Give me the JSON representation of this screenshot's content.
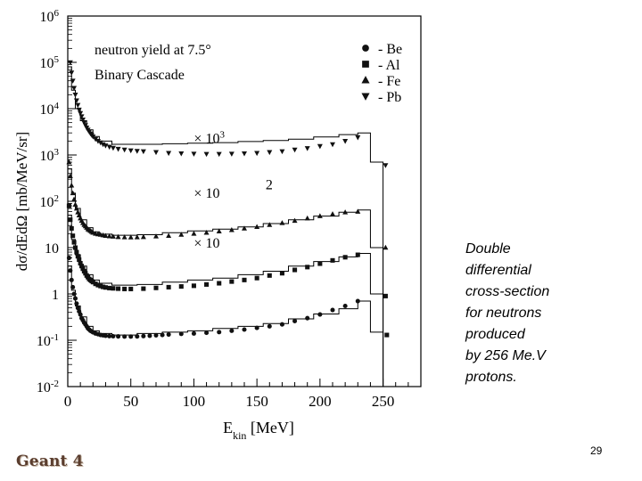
{
  "chart_data": {
    "type": "scatter",
    "title": "neutron yield at 7.5°",
    "subtitle": "Binary Cascade",
    "xlabel_main": "E",
    "xlabel_sub": "kin",
    "xlabel_unit": " [MeV]",
    "ylabel": "dσ/dEdΩ [mb/MeV/sr]",
    "xlim": [
      0,
      280
    ],
    "ylim": [
      0.01,
      1000000
    ],
    "yscale": "log",
    "xticks": [
      0,
      50,
      100,
      150,
      200,
      250
    ],
    "xtick_labels": [
      "0",
      "50",
      "100",
      "150",
      "200",
      "250"
    ],
    "yticks": [
      {
        "value": 1000000,
        "base": "10",
        "exp": "6"
      },
      {
        "value": 100000,
        "base": "10",
        "exp": "5"
      },
      {
        "value": 10000,
        "base": "10",
        "exp": "4"
      },
      {
        "value": 1000,
        "base": "10",
        "exp": "3"
      },
      {
        "value": 100,
        "base": "10",
        "exp": "2"
      },
      {
        "value": 10,
        "base": "10",
        "exp": ""
      },
      {
        "value": 1,
        "base": "1",
        "exp": ""
      },
      {
        "value": 0.1,
        "base": "10",
        "exp": "-1"
      },
      {
        "value": 0.01,
        "base": "10",
        "exp": "-2"
      }
    ],
    "scale_labels": [
      {
        "text": "× 10",
        "exp": "3",
        "x": 100,
        "y": 1800
      },
      {
        "text": "× 10",
        "exp": "",
        "x": 100,
        "y": 120
      },
      {
        "text": "2",
        "exp": "",
        "x": 130,
        "y": 180
      },
      {
        "text": "× 10",
        "exp": "",
        "x": 100,
        "y": 10
      }
    ],
    "legend": [
      {
        "marker": "circle",
        "label": "- Be"
      },
      {
        "marker": "square",
        "label": "- Al"
      },
      {
        "marker": "triangle-up",
        "label": "- Fe"
      },
      {
        "marker": "triangle-down",
        "label": "- Pb"
      }
    ],
    "series": [
      {
        "name": "Be",
        "marker": "circle",
        "points": [
          [
            1,
            6
          ],
          [
            2,
            3.2
          ],
          [
            3,
            2
          ],
          [
            4,
            1.4
          ],
          [
            5,
            1
          ],
          [
            6,
            0.8
          ],
          [
            7,
            0.62
          ],
          [
            8,
            0.5
          ],
          [
            9,
            0.42
          ],
          [
            10,
            0.36
          ],
          [
            11,
            0.3
          ],
          [
            12,
            0.27
          ],
          [
            13,
            0.24
          ],
          [
            14,
            0.22
          ],
          [
            15,
            0.2
          ],
          [
            16,
            0.18
          ],
          [
            17,
            0.17
          ],
          [
            18,
            0.16
          ],
          [
            19,
            0.155
          ],
          [
            20,
            0.148
          ],
          [
            22,
            0.14
          ],
          [
            24,
            0.135
          ],
          [
            26,
            0.13
          ],
          [
            28,
            0.128
          ],
          [
            30,
            0.125
          ],
          [
            33,
            0.123
          ],
          [
            36,
            0.122
          ],
          [
            40,
            0.121
          ],
          [
            45,
            0.12
          ],
          [
            50,
            0.12
          ],
          [
            55,
            0.121
          ],
          [
            60,
            0.123
          ],
          [
            65,
            0.125
          ],
          [
            70,
            0.128
          ],
          [
            75,
            0.13
          ],
          [
            80,
            0.133
          ],
          [
            90,
            0.137
          ],
          [
            100,
            0.14
          ],
          [
            110,
            0.145
          ],
          [
            120,
            0.15
          ],
          [
            130,
            0.16
          ],
          [
            140,
            0.17
          ],
          [
            150,
            0.185
          ],
          [
            160,
            0.2
          ],
          [
            170,
            0.22
          ],
          [
            180,
            0.26
          ],
          [
            190,
            0.3
          ],
          [
            200,
            0.36
          ],
          [
            210,
            0.45
          ],
          [
            220,
            0.55
          ],
          [
            230,
            0.7
          ]
        ],
        "hist": [
          [
            0,
            4
          ],
          [
            3,
            1.2
          ],
          [
            6,
            0.55
          ],
          [
            10,
            0.32
          ],
          [
            15,
            0.2
          ],
          [
            20,
            0.16
          ],
          [
            25,
            0.14
          ],
          [
            35,
            0.13
          ],
          [
            55,
            0.14
          ],
          [
            75,
            0.15
          ],
          [
            95,
            0.16
          ],
          [
            115,
            0.18
          ],
          [
            135,
            0.2
          ],
          [
            155,
            0.23
          ],
          [
            175,
            0.29
          ],
          [
            195,
            0.37
          ],
          [
            215,
            0.48
          ],
          [
            230,
            0.7
          ],
          [
            240,
            0.15
          ],
          [
            250,
            0.01
          ]
        ]
      },
      {
        "name": "Al",
        "marker": "square",
        "points": [
          [
            1,
            80
          ],
          [
            2,
            40
          ],
          [
            3,
            26
          ],
          [
            4,
            18
          ],
          [
            5,
            13
          ],
          [
            6,
            10
          ],
          [
            7,
            8
          ],
          [
            8,
            6.5
          ],
          [
            9,
            5.5
          ],
          [
            10,
            4.6
          ],
          [
            11,
            4
          ],
          [
            12,
            3.5
          ],
          [
            13,
            3.1
          ],
          [
            14,
            2.8
          ],
          [
            15,
            2.5
          ],
          [
            16,
            2.3
          ],
          [
            17,
            2.1
          ],
          [
            18,
            2
          ],
          [
            19,
            1.9
          ],
          [
            20,
            1.8
          ],
          [
            22,
            1.65
          ],
          [
            24,
            1.55
          ],
          [
            26,
            1.48
          ],
          [
            28,
            1.42
          ],
          [
            30,
            1.38
          ],
          [
            33,
            1.34
          ],
          [
            36,
            1.32
          ],
          [
            40,
            1.3
          ],
          [
            45,
            1.28
          ],
          [
            50,
            1.28
          ],
          [
            60,
            1.3
          ],
          [
            70,
            1.35
          ],
          [
            80,
            1.4
          ],
          [
            90,
            1.45
          ],
          [
            100,
            1.5
          ],
          [
            110,
            1.6
          ],
          [
            120,
            1.7
          ],
          [
            130,
            1.85
          ],
          [
            140,
            2
          ],
          [
            150,
            2.2
          ],
          [
            160,
            2.5
          ],
          [
            170,
            2.8
          ],
          [
            180,
            3.3
          ],
          [
            190,
            3.8
          ],
          [
            200,
            4.5
          ],
          [
            210,
            5.3
          ],
          [
            220,
            6.2
          ],
          [
            230,
            7
          ],
          [
            252,
            0.9
          ],
          [
            253,
            0.13
          ]
        ],
        "hist": [
          [
            0,
            50
          ],
          [
            3,
            15
          ],
          [
            6,
            7
          ],
          [
            10,
            4
          ],
          [
            15,
            2.6
          ],
          [
            20,
            2
          ],
          [
            25,
            1.7
          ],
          [
            35,
            1.55
          ],
          [
            55,
            1.6
          ],
          [
            75,
            1.8
          ],
          [
            95,
            2
          ],
          [
            115,
            2.2
          ],
          [
            135,
            2.6
          ],
          [
            155,
            3.1
          ],
          [
            175,
            4
          ],
          [
            195,
            5
          ],
          [
            215,
            6.3
          ],
          [
            230,
            7.5
          ],
          [
            240,
            1
          ],
          [
            250,
            0.01
          ]
        ]
      },
      {
        "name": "Fe",
        "marker": "triangle-up",
        "points": [
          [
            1,
            700
          ],
          [
            2,
            350
          ],
          [
            3,
            220
          ],
          [
            4,
            150
          ],
          [
            5,
            110
          ],
          [
            6,
            85
          ],
          [
            7,
            70
          ],
          [
            8,
            58
          ],
          [
            9,
            50
          ],
          [
            10,
            43
          ],
          [
            11,
            38
          ],
          [
            12,
            34
          ],
          [
            13,
            31
          ],
          [
            14,
            29
          ],
          [
            15,
            27
          ],
          [
            16,
            25
          ],
          [
            17,
            24
          ],
          [
            18,
            23
          ],
          [
            19,
            22
          ],
          [
            20,
            21
          ],
          [
            22,
            20
          ],
          [
            24,
            19.5
          ],
          [
            26,
            19
          ],
          [
            28,
            18.5
          ],
          [
            30,
            18
          ],
          [
            33,
            17.6
          ],
          [
            36,
            17.3
          ],
          [
            40,
            17
          ],
          [
            45,
            16.8
          ],
          [
            50,
            16.7
          ],
          [
            55,
            16.8
          ],
          [
            60,
            17
          ],
          [
            70,
            17.5
          ],
          [
            80,
            18
          ],
          [
            90,
            19
          ],
          [
            100,
            20
          ],
          [
            110,
            21
          ],
          [
            120,
            22.5
          ],
          [
            130,
            24
          ],
          [
            140,
            26
          ],
          [
            150,
            28
          ],
          [
            160,
            31
          ],
          [
            170,
            34
          ],
          [
            180,
            38
          ],
          [
            190,
            43
          ],
          [
            200,
            48
          ],
          [
            210,
            53
          ],
          [
            220,
            58
          ],
          [
            230,
            60
          ],
          [
            252,
            10
          ]
        ],
        "hist": [
          [
            0,
            500
          ],
          [
            3,
            150
          ],
          [
            6,
            70
          ],
          [
            10,
            40
          ],
          [
            15,
            27
          ],
          [
            20,
            22
          ],
          [
            25,
            19.5
          ],
          [
            35,
            18.5
          ],
          [
            55,
            19
          ],
          [
            75,
            21
          ],
          [
            95,
            23
          ],
          [
            115,
            25
          ],
          [
            135,
            28
          ],
          [
            155,
            33
          ],
          [
            175,
            40
          ],
          [
            195,
            48
          ],
          [
            215,
            58
          ],
          [
            230,
            65
          ],
          [
            240,
            10
          ],
          [
            250,
            0.01
          ]
        ]
      },
      {
        "name": "Pb",
        "marker": "triangle-down",
        "points": [
          [
            2,
            100000
          ],
          [
            3,
            60000
          ],
          [
            4,
            40000
          ],
          [
            5,
            28000
          ],
          [
            6,
            20000
          ],
          [
            7,
            15000
          ],
          [
            8,
            12000
          ],
          [
            9,
            9500
          ],
          [
            10,
            8000
          ],
          [
            11,
            6800
          ],
          [
            12,
            5800
          ],
          [
            13,
            5000
          ],
          [
            14,
            4400
          ],
          [
            15,
            3900
          ],
          [
            16,
            3500
          ],
          [
            17,
            3200
          ],
          [
            18,
            2900
          ],
          [
            19,
            2700
          ],
          [
            20,
            2500
          ],
          [
            22,
            2200
          ],
          [
            24,
            2000
          ],
          [
            26,
            1850
          ],
          [
            28,
            1700
          ],
          [
            30,
            1600
          ],
          [
            33,
            1500
          ],
          [
            36,
            1420
          ],
          [
            40,
            1350
          ],
          [
            45,
            1300
          ],
          [
            50,
            1250
          ],
          [
            55,
            1220
          ],
          [
            60,
            1200
          ],
          [
            70,
            1150
          ],
          [
            80,
            1100
          ],
          [
            90,
            1080
          ],
          [
            100,
            1060
          ],
          [
            110,
            1050
          ],
          [
            120,
            1050
          ],
          [
            130,
            1060
          ],
          [
            140,
            1080
          ],
          [
            150,
            1100
          ],
          [
            160,
            1150
          ],
          [
            170,
            1200
          ],
          [
            180,
            1300
          ],
          [
            190,
            1400
          ],
          [
            200,
            1550
          ],
          [
            210,
            1700
          ],
          [
            220,
            2000
          ],
          [
            230,
            2400
          ],
          [
            252,
            600
          ]
        ],
        "hist": [
          [
            0,
            80000
          ],
          [
            3,
            25000
          ],
          [
            6,
            10000
          ],
          [
            10,
            5500
          ],
          [
            15,
            3500
          ],
          [
            20,
            2500
          ],
          [
            25,
            2000
          ],
          [
            35,
            1700
          ],
          [
            55,
            1700
          ],
          [
            75,
            1750
          ],
          [
            95,
            1800
          ],
          [
            115,
            1850
          ],
          [
            135,
            1950
          ],
          [
            155,
            2050
          ],
          [
            175,
            2200
          ],
          [
            195,
            2450
          ],
          [
            215,
            2750
          ],
          [
            230,
            3000
          ],
          [
            240,
            700
          ],
          [
            250,
            0.01
          ]
        ]
      }
    ]
  },
  "caption": {
    "lines": [
      "Double",
      "differential",
      "cross-section",
      "for neutrons",
      "produced",
      "by 256 Me.V",
      "protons."
    ]
  },
  "page_number": "29",
  "logo_text": "Geant 4"
}
